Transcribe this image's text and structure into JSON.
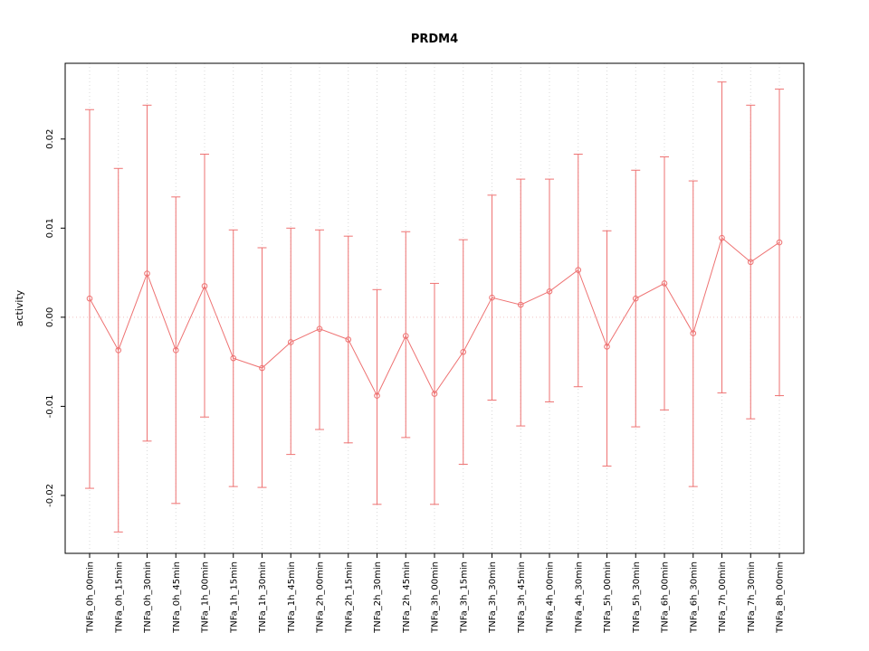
{
  "chart_data": {
    "type": "line",
    "title": "PRDM4",
    "ylabel": "activity",
    "xlabel": "",
    "legend": "none",
    "series_name": "activity with error bars",
    "series_color": "#ee7272",
    "grid": {
      "vertical_dotted": true,
      "zero_line_dotted": true
    },
    "grid_color": "#d9d9d9",
    "zero_line_color": "#f0c2c2",
    "ylim": [
      -0.0265,
      0.0285
    ],
    "ytick_values": [
      -0.02,
      -0.01,
      0,
      0.01,
      0.02
    ],
    "ytick_labels": [
      "-0.02",
      "-0.01",
      "0.00",
      "0.01",
      "0.02"
    ],
    "categories": [
      "TNFa_0h_00min",
      "TNFa_0h_15min",
      "TNFa_0h_30min",
      "TNFa_0h_45min",
      "TNFa_1h_00min",
      "TNFa_1h_15min",
      "TNFa_1h_30min",
      "TNFa_1h_45min",
      "TNFa_2h_00min",
      "TNFa_2h_15min",
      "TNFa_2h_30min",
      "TNFa_2h_45min",
      "TNFa_3h_00min",
      "TNFa_3h_15min",
      "TNFa_3h_30min",
      "TNFa_3h_45min",
      "TNFa_4h_00min",
      "TNFa_4h_30min",
      "TNFa_5h_00min",
      "TNFa_5h_30min",
      "TNFa_6h_00min",
      "TNFa_6h_30min",
      "TNFa_7h_00min",
      "TNFa_7h_30min",
      "TNFa_8h_00min"
    ],
    "means": [
      0.0021,
      -0.0037,
      0.0049,
      -0.0037,
      0.0035,
      -0.0046,
      -0.0057,
      -0.0028,
      -0.0013,
      -0.0025,
      -0.0088,
      -0.0021,
      -0.0086,
      -0.0039,
      0.0022,
      0.0014,
      0.0029,
      0.0053,
      -0.0033,
      0.0021,
      0.0038,
      -0.0018,
      0.0089,
      0.0062,
      0.0084
    ],
    "upper": [
      0.0233,
      0.0167,
      0.0238,
      0.0135,
      0.0183,
      0.0098,
      0.0078,
      0.01,
      0.0098,
      0.0091,
      0.0031,
      0.0096,
      0.0038,
      0.0087,
      0.0137,
      0.0155,
      0.0155,
      0.0183,
      0.0097,
      0.0165,
      0.018,
      0.0153,
      0.0264,
      0.0238,
      0.0256
    ],
    "lower": [
      -0.0192,
      -0.0241,
      -0.0139,
      -0.0209,
      -0.0112,
      -0.019,
      -0.0191,
      -0.0154,
      -0.0126,
      -0.0141,
      -0.021,
      -0.0135,
      -0.021,
      -0.0165,
      -0.0093,
      -0.0122,
      -0.0095,
      -0.0078,
      -0.0167,
      -0.0123,
      -0.0104,
      -0.019,
      -0.0085,
      -0.0114,
      -0.0088
    ]
  }
}
